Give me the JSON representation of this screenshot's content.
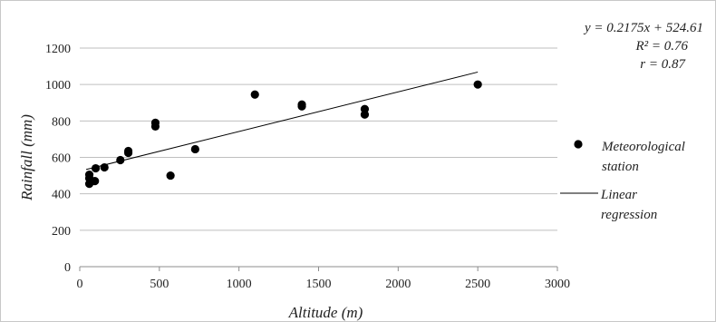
{
  "chart_data": {
    "type": "scatter",
    "xlabel": "Altitude (m)",
    "ylabel": "Rainfall (mm)",
    "xlim": [
      0,
      3000
    ],
    "ylim": [
      0,
      1200
    ],
    "x_ticks": [
      "0",
      "500",
      "1000",
      "1500",
      "2000",
      "2500",
      "3000"
    ],
    "y_ticks": [
      "0",
      "200",
      "400",
      "600",
      "800",
      "1000",
      "1200"
    ],
    "grid": "horizontal",
    "legend_position": "right",
    "series": [
      {
        "name": "Meteorological station",
        "name_lines": [
          "Meteorological",
          "station"
        ],
        "kind": "scatter",
        "color": "#000000",
        "points": [
          {
            "x": 60,
            "y": 455
          },
          {
            "x": 60,
            "y": 485
          },
          {
            "x": 60,
            "y": 505
          },
          {
            "x": 95,
            "y": 470
          },
          {
            "x": 100,
            "y": 540
          },
          {
            "x": 155,
            "y": 545
          },
          {
            "x": 255,
            "y": 585
          },
          {
            "x": 305,
            "y": 625
          },
          {
            "x": 305,
            "y": 635
          },
          {
            "x": 475,
            "y": 770
          },
          {
            "x": 475,
            "y": 790
          },
          {
            "x": 570,
            "y": 500
          },
          {
            "x": 725,
            "y": 645
          },
          {
            "x": 1100,
            "y": 945
          },
          {
            "x": 1395,
            "y": 880
          },
          {
            "x": 1395,
            "y": 890
          },
          {
            "x": 1790,
            "y": 835
          },
          {
            "x": 1790,
            "y": 865
          },
          {
            "x": 2500,
            "y": 1000
          }
        ]
      },
      {
        "name": "Linear regression",
        "name_lines": [
          "Linear",
          "regression"
        ],
        "kind": "line",
        "color": "#000000",
        "slope": 0.2175,
        "intercept": 524.61,
        "x_range": [
          40,
          2500
        ]
      }
    ],
    "annotations": [
      "y = 0.2175x + 524.61",
      "R² = 0.76",
      "r = 0.87"
    ]
  }
}
